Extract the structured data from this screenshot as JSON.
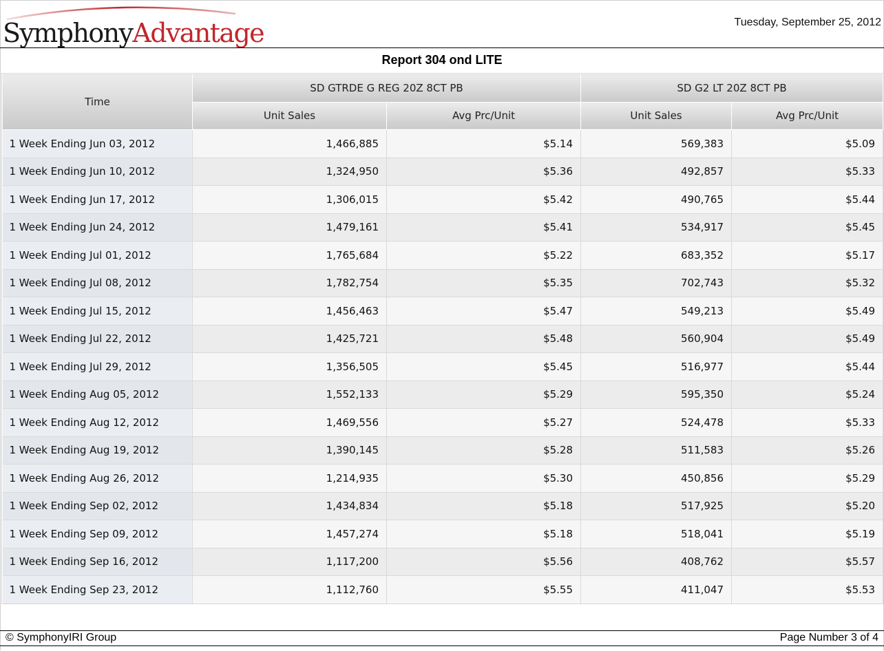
{
  "header": {
    "logo_part1": "Symphony",
    "logo_part2": "Advantage",
    "date": "Tuesday, September 25, 2012"
  },
  "report": {
    "title": "Report 304 ond LITE"
  },
  "table": {
    "time_header": "Time",
    "groups": [
      {
        "product": "SD GTRDE G REG 20Z 8CT PB",
        "columns": [
          "Unit Sales",
          "Avg Prc/Unit"
        ]
      },
      {
        "product": "SD G2 LT 20Z 8CT PB",
        "columns": [
          "Unit Sales",
          "Avg Prc/Unit"
        ]
      }
    ],
    "rows": [
      {
        "time": "1 Week Ending Jun 03, 2012",
        "values": [
          "1,466,885",
          "$5.14",
          "569,383",
          "$5.09"
        ]
      },
      {
        "time": "1 Week Ending Jun 10, 2012",
        "values": [
          "1,324,950",
          "$5.36",
          "492,857",
          "$5.33"
        ]
      },
      {
        "time": "1 Week Ending Jun 17, 2012",
        "values": [
          "1,306,015",
          "$5.42",
          "490,765",
          "$5.44"
        ]
      },
      {
        "time": "1 Week Ending Jun 24, 2012",
        "values": [
          "1,479,161",
          "$5.41",
          "534,917",
          "$5.45"
        ]
      },
      {
        "time": "1 Week Ending Jul 01, 2012",
        "values": [
          "1,765,684",
          "$5.22",
          "683,352",
          "$5.17"
        ]
      },
      {
        "time": "1 Week Ending Jul 08, 2012",
        "values": [
          "1,782,754",
          "$5.35",
          "702,743",
          "$5.32"
        ]
      },
      {
        "time": "1 Week Ending Jul 15, 2012",
        "values": [
          "1,456,463",
          "$5.47",
          "549,213",
          "$5.49"
        ]
      },
      {
        "time": "1 Week Ending Jul 22, 2012",
        "values": [
          "1,425,721",
          "$5.48",
          "560,904",
          "$5.49"
        ]
      },
      {
        "time": "1 Week Ending Jul 29, 2012",
        "values": [
          "1,356,505",
          "$5.45",
          "516,977",
          "$5.44"
        ]
      },
      {
        "time": "1 Week Ending Aug 05, 2012",
        "values": [
          "1,552,133",
          "$5.29",
          "595,350",
          "$5.24"
        ]
      },
      {
        "time": "1 Week Ending Aug 12, 2012",
        "values": [
          "1,469,556",
          "$5.27",
          "524,478",
          "$5.33"
        ]
      },
      {
        "time": "1 Week Ending Aug 19, 2012",
        "values": [
          "1,390,145",
          "$5.28",
          "511,583",
          "$5.26"
        ]
      },
      {
        "time": "1 Week Ending Aug 26, 2012",
        "values": [
          "1,214,935",
          "$5.30",
          "450,856",
          "$5.29"
        ]
      },
      {
        "time": "1 Week Ending Sep 02, 2012",
        "values": [
          "1,434,834",
          "$5.18",
          "517,925",
          "$5.20"
        ]
      },
      {
        "time": "1 Week Ending Sep 09, 2012",
        "values": [
          "1,457,274",
          "$5.18",
          "518,041",
          "$5.19"
        ]
      },
      {
        "time": "1 Week Ending Sep 16, 2012",
        "values": [
          "1,117,200",
          "$5.56",
          "408,762",
          "$5.57"
        ]
      },
      {
        "time": "1 Week Ending Sep 23, 2012",
        "values": [
          "1,112,760",
          "$5.55",
          "411,047",
          "$5.53"
        ]
      }
    ]
  },
  "footer": {
    "copyright": "© SymphonyIRI Group",
    "page_number": "Page Number 3 of 4"
  }
}
